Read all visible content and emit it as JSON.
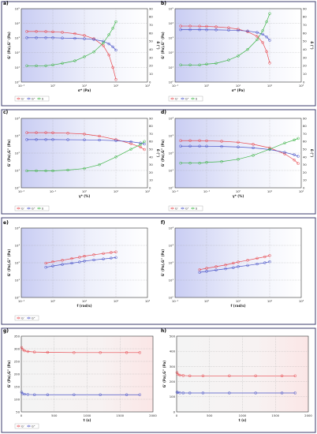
{
  "chart_data": [
    {
      "id": "a",
      "panel_label": "a)",
      "type": "line",
      "x_scale": "log",
      "xlim": [
        0.1,
        1000
      ],
      "ylim": [
        1,
        100000
      ],
      "y2lim": [
        0,
        90
      ],
      "xlabel": "σ* (Pa)",
      "ylabel": "G' (Pa),G'' (Pa)",
      "y2label": "δ (°)",
      "x_ticks": [
        "10⁻¹",
        "10⁰",
        "10¹",
        "10²",
        "10³"
      ],
      "y_ticks": [
        "10⁰",
        "10¹",
        "10²",
        "10³",
        "10⁴",
        "10⁵"
      ],
      "y2_ticks": [
        "0",
        "10",
        "20",
        "30",
        "40",
        "50",
        "60",
        "70",
        "80",
        "90"
      ],
      "legend": [
        "G'",
        "G''",
        "δ"
      ],
      "colors": [
        "#e8474d",
        "#4a54c8",
        "#3fb548"
      ],
      "series": [
        {
          "name": "G'",
          "axis": "left",
          "x": [
            0.15,
            0.3,
            0.6,
            1,
            2,
            5,
            10,
            20,
            40,
            60,
            80,
            100
          ],
          "y": [
            2800,
            2800,
            2750,
            2650,
            2450,
            2000,
            1500,
            900,
            300,
            70,
            10,
            1.5
          ]
        },
        {
          "name": "G''",
          "axis": "left",
          "x": [
            0.15,
            0.3,
            0.6,
            1,
            2,
            5,
            10,
            20,
            40,
            60,
            80,
            100
          ],
          "y": [
            1050,
            1050,
            1050,
            1050,
            1000,
            950,
            900,
            800,
            600,
            400,
            250,
            150
          ]
        },
        {
          "name": "δ",
          "axis": "right",
          "x": [
            0.15,
            0.3,
            0.6,
            1,
            2,
            5,
            10,
            20,
            40,
            60,
            80,
            100
          ],
          "y": [
            20,
            20,
            20,
            21,
            23,
            26,
            31,
            37,
            48,
            58,
            66,
            74
          ]
        }
      ]
    },
    {
      "id": "b",
      "panel_label": "b)",
      "type": "line",
      "x_scale": "log",
      "xlim": [
        0.1,
        1000
      ],
      "ylim": [
        1,
        100000
      ],
      "y2lim": [
        0,
        90
      ],
      "xlabel": "σ* (Pa)",
      "ylabel": "G' (Pa),G'' (Pa)",
      "y2label": "δ (°)",
      "x_ticks": [
        "10⁻¹",
        "10⁰",
        "10¹",
        "10²",
        "10³"
      ],
      "y_ticks": [
        "10⁰",
        "10¹",
        "10²",
        "10³",
        "10⁴",
        "10⁵"
      ],
      "y2_ticks": [
        "0",
        "10",
        "20",
        "30",
        "40",
        "50",
        "60",
        "70",
        "80",
        "90"
      ],
      "legend": [
        "G'",
        "G''",
        "δ"
      ],
      "colors": [
        "#e8474d",
        "#4a54c8",
        "#3fb548"
      ],
      "series": [
        {
          "name": "G'",
          "axis": "left",
          "x": [
            0.15,
            0.3,
            0.6,
            1,
            2,
            5,
            10,
            20,
            40,
            60,
            80,
            100
          ],
          "y": [
            6500,
            6500,
            6400,
            6200,
            5800,
            5000,
            4000,
            2700,
            1300,
            500,
            120,
            20
          ]
        },
        {
          "name": "G''",
          "axis": "left",
          "x": [
            0.15,
            0.3,
            0.6,
            1,
            2,
            5,
            10,
            20,
            40,
            60,
            80,
            100
          ],
          "y": [
            3700,
            3700,
            3700,
            3650,
            3600,
            3450,
            3300,
            3000,
            2400,
            1800,
            1200,
            700
          ]
        },
        {
          "name": "δ",
          "axis": "right",
          "x": [
            0.15,
            0.3,
            0.6,
            1,
            2,
            5,
            10,
            20,
            40,
            60,
            80,
            100
          ],
          "y": [
            21,
            21,
            21,
            22,
            23,
            27,
            32,
            40,
            52,
            63,
            74,
            84
          ]
        }
      ]
    },
    {
      "id": "c",
      "panel_label": "c)",
      "type": "line",
      "x_scale": "log",
      "xlim": [
        0.01,
        100
      ],
      "ylim": [
        1,
        10000
      ],
      "y2lim": [
        0,
        90
      ],
      "xlabel": "γ* (%)",
      "ylabel": "G' (Pa),G'' (Pa)",
      "y2label": "δ (°)",
      "x_ticks": [
        "10⁻²",
        "10⁻¹",
        "10⁰",
        "10¹",
        "10²"
      ],
      "y_ticks": [
        "10⁰",
        "10¹",
        "10²",
        "10³",
        "10⁴"
      ],
      "y2_ticks": [
        "0",
        "10",
        "20",
        "30",
        "40",
        "50",
        "60",
        "70",
        "80",
        "90"
      ],
      "legend": [
        "G'",
        "G''",
        "δ"
      ],
      "colors": [
        "#e8474d",
        "#4a54c8",
        "#3fb548"
      ],
      "series": [
        {
          "name": "G'",
          "axis": "left",
          "x": [
            0.015,
            0.03,
            0.06,
            0.1,
            0.3,
            1,
            3,
            10,
            30,
            60,
            80
          ],
          "y": [
            1500,
            1500,
            1500,
            1480,
            1400,
            1250,
            950,
            600,
            350,
            220,
            160
          ]
        },
        {
          "name": "G''",
          "axis": "left",
          "x": [
            0.015,
            0.03,
            0.06,
            0.1,
            0.3,
            1,
            3,
            10,
            30,
            60,
            80
          ],
          "y": [
            600,
            600,
            600,
            600,
            590,
            580,
            560,
            520,
            450,
            380,
            330
          ]
        },
        {
          "name": "δ",
          "axis": "right",
          "x": [
            0.015,
            0.03,
            0.06,
            0.1,
            0.3,
            1,
            3,
            10,
            30,
            60,
            80
          ],
          "y": [
            22,
            22,
            22,
            22,
            23,
            25,
            30,
            40,
            50,
            56,
            60
          ]
        }
      ]
    },
    {
      "id": "d",
      "panel_label": "d)",
      "type": "line",
      "x_scale": "log",
      "xlim": [
        0.01,
        100
      ],
      "ylim": [
        1,
        10000
      ],
      "y2lim": [
        0,
        90
      ],
      "xlabel": "γ* (%)",
      "ylabel": "G' (Pa),G'' (Pa)",
      "y2label": "δ (°)",
      "x_ticks": [
        "10⁻²",
        "10⁻¹",
        "10⁰",
        "10¹",
        "10²"
      ],
      "y_ticks": [
        "10⁰",
        "10¹",
        "10²",
        "10³",
        "10⁴"
      ],
      "y2_ticks": [
        "0",
        "10",
        "20",
        "30",
        "40",
        "50",
        "60",
        "70",
        "80",
        "90"
      ],
      "legend": [
        "G'",
        "G''",
        "δ"
      ],
      "colors": [
        "#e8474d",
        "#4a54c8",
        "#3fb548"
      ],
      "series": [
        {
          "name": "G'",
          "axis": "left",
          "x": [
            0.015,
            0.03,
            0.06,
            0.1,
            0.3,
            1,
            3,
            10,
            30,
            60,
            80
          ],
          "y": [
            520,
            520,
            520,
            510,
            480,
            420,
            320,
            200,
            90,
            40,
            25
          ]
        },
        {
          "name": "G''",
          "axis": "left",
          "x": [
            0.015,
            0.03,
            0.06,
            0.1,
            0.3,
            1,
            3,
            10,
            30,
            60,
            80
          ],
          "y": [
            250,
            250,
            250,
            248,
            240,
            225,
            200,
            160,
            110,
            80,
            65
          ]
        },
        {
          "name": "δ",
          "axis": "right",
          "x": [
            0.015,
            0.03,
            0.06,
            0.1,
            0.3,
            1,
            3,
            10,
            30,
            60,
            80
          ],
          "y": [
            32,
            32,
            32,
            33,
            34,
            37,
            42,
            50,
            58,
            62,
            64
          ]
        }
      ]
    },
    {
      "id": "e",
      "panel_label": "e)",
      "type": "line",
      "x_scale": "log",
      "xlim": [
        0.1,
        1000
      ],
      "ylim": [
        1,
        10000
      ],
      "xlabel": "f (rad/s)",
      "ylabel": "G' (Pa),G'' (Pa)",
      "x_ticks": [
        "10⁻¹",
        "10⁰",
        "10¹",
        "10²",
        "10³"
      ],
      "y_ticks": [
        "10⁰",
        "10¹",
        "10²",
        "10³",
        "10⁴"
      ],
      "legend": [
        "G'",
        "G''"
      ],
      "colors": [
        "#e8474d",
        "#4a54c8"
      ],
      "series": [
        {
          "name": "G'",
          "axis": "left",
          "x": [
            0.6,
            1,
            2,
            4,
            7,
            10,
            20,
            40,
            70,
            100
          ],
          "y": [
            95,
            115,
            140,
            175,
            210,
            240,
            290,
            340,
            390,
            420
          ]
        },
        {
          "name": "G''",
          "axis": "left",
          "x": [
            0.6,
            1,
            2,
            4,
            7,
            10,
            20,
            40,
            70,
            100
          ],
          "y": [
            55,
            65,
            80,
            95,
            110,
            125,
            145,
            165,
            185,
            200
          ]
        }
      ]
    },
    {
      "id": "f",
      "panel_label": "f)",
      "type": "line",
      "x_scale": "log",
      "xlim": [
        0.1,
        1000
      ],
      "ylim": [
        1,
        10000
      ],
      "xlabel": "f (rad/s)",
      "ylabel": "G' (Pa),G'' (Pa)",
      "x_ticks": [
        "10⁻¹",
        "10⁰",
        "10¹",
        "10²",
        "10³"
      ],
      "y_ticks": [
        "10⁰",
        "10¹",
        "10²",
        "10³",
        "10⁴"
      ],
      "legend": [],
      "colors": [
        "#e8474d",
        "#4a54c8"
      ],
      "series": [
        {
          "name": "G'",
          "axis": "left",
          "x": [
            0.6,
            1,
            2,
            4,
            7,
            10,
            20,
            40,
            70,
            100
          ],
          "y": [
            40,
            48,
            60,
            75,
            95,
            110,
            140,
            180,
            220,
            260
          ]
        },
        {
          "name": "G''",
          "axis": "left",
          "x": [
            0.6,
            1,
            2,
            4,
            7,
            10,
            20,
            40,
            70,
            100
          ],
          "y": [
            28,
            32,
            38,
            45,
            52,
            60,
            70,
            85,
            100,
            115
          ]
        }
      ]
    },
    {
      "id": "g",
      "panel_label": "g)",
      "type": "line",
      "x_scale": "linear",
      "xlim": [
        0,
        2000
      ],
      "ylim": [
        50,
        350
      ],
      "xlabel": "t (s)",
      "ylabel": "G' (Pa),G'' (Pa)",
      "x_ticks": [
        "0",
        "500",
        "1000",
        "1500",
        "2000"
      ],
      "y_ticks": [
        "50",
        "100",
        "150",
        "200",
        "250",
        "300",
        "350"
      ],
      "legend": [
        "G'",
        "G''"
      ],
      "colors": [
        "#e8474d",
        "#4a54c8"
      ],
      "series": [
        {
          "name": "G'",
          "axis": "left",
          "x": [
            5,
            20,
            50,
            100,
            200,
            400,
            800,
            1200,
            1600,
            1800
          ],
          "y": [
            305,
            298,
            292,
            289,
            287,
            286,
            285,
            285,
            285,
            285
          ]
        },
        {
          "name": "G''",
          "axis": "left",
          "x": [
            5,
            20,
            50,
            100,
            200,
            400,
            800,
            1200,
            1600,
            1800
          ],
          "y": [
            128,
            122,
            120,
            119,
            118,
            118,
            118,
            118,
            118,
            118
          ]
        }
      ]
    },
    {
      "id": "h",
      "panel_label": "h)",
      "type": "line",
      "x_scale": "linear",
      "xlim": [
        0,
        2000
      ],
      "ylim": [
        0,
        500
      ],
      "xlabel": "t (s)",
      "ylabel": "G' (Pa),G'' (Pa)",
      "x_ticks": [
        "0",
        "500",
        "1000",
        "1500",
        "2000"
      ],
      "y_ticks": [
        "0",
        "100",
        "200",
        "300",
        "400",
        "500"
      ],
      "legend": [],
      "colors": [
        "#e8474d",
        "#4a54c8"
      ],
      "series": [
        {
          "name": "G'",
          "axis": "left",
          "x": [
            5,
            20,
            50,
            100,
            200,
            400,
            800,
            1200,
            1600,
            1800
          ],
          "y": [
            260,
            248,
            242,
            240,
            238,
            238,
            238,
            238,
            238,
            238
          ]
        },
        {
          "name": "G''",
          "axis": "left",
          "x": [
            5,
            20,
            50,
            100,
            200,
            400,
            800,
            1200,
            1600,
            1800
          ],
          "y": [
            130,
            128,
            126,
            125,
            125,
            125,
            125,
            125,
            125,
            125
          ]
        }
      ]
    }
  ]
}
